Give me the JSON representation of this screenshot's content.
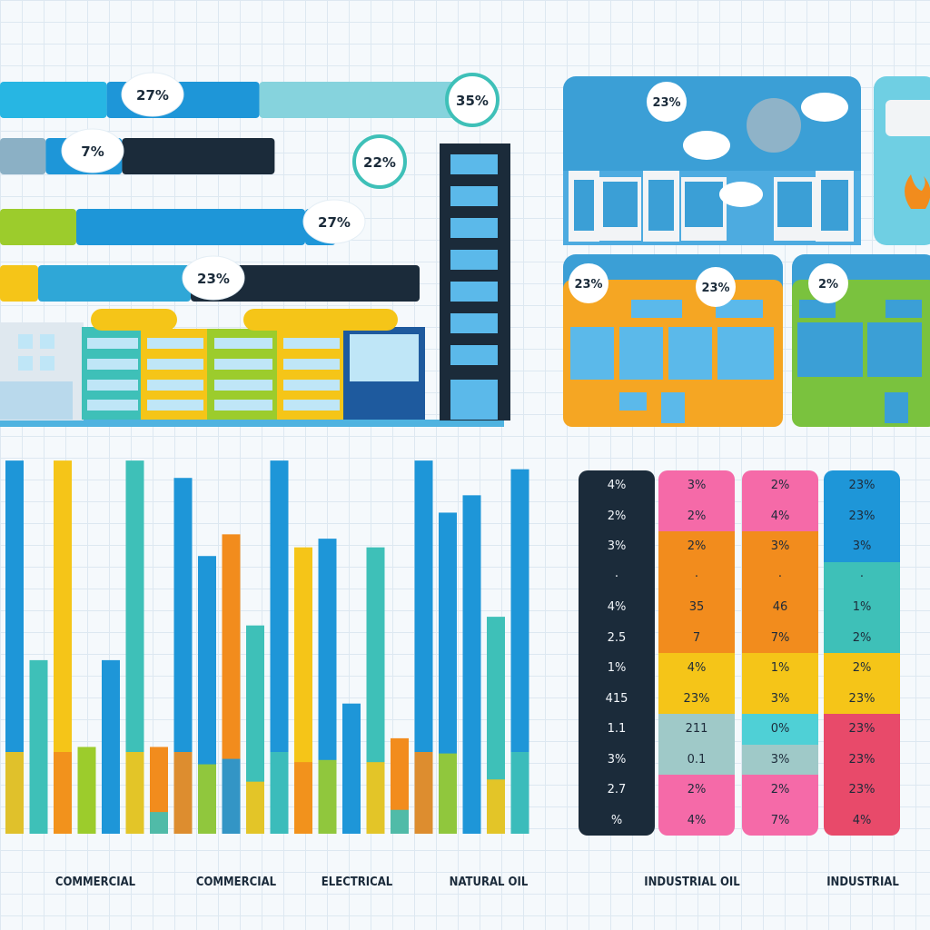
{
  "hbars": [
    {
      "label": "27%",
      "segments": [
        {
          "value": 28,
          "color": "#27b6e3"
        },
        {
          "value": 40,
          "color": "#1e96d8"
        },
        {
          "value": 55,
          "color": "#86d3dd"
        }
      ],
      "badge_alt": "35%"
    },
    {
      "label": "7%",
      "segments": [
        {
          "value": 12,
          "color": "#8bb0c5"
        },
        {
          "value": 20,
          "color": "#1e96d8"
        },
        {
          "value": 40,
          "color": "#1b2b3a"
        }
      ],
      "badge_alt": "22%"
    },
    {
      "label": "27%",
      "segments": [
        {
          "value": 20,
          "color": "#9ccc2c"
        },
        {
          "value": 60,
          "color": "#1e96d8"
        },
        {
          "value": 8,
          "color": "#1e96d8"
        }
      ]
    },
    {
      "label": "23%",
      "segments": [
        {
          "value": 10,
          "color": "#f5c518"
        },
        {
          "value": 40,
          "color": "#2fa7d7"
        },
        {
          "value": 60,
          "color": "#1b2b3a"
        }
      ]
    }
  ],
  "card_badges": [
    "23%",
    "23%",
    "23%",
    "2%"
  ],
  "chart_data": {
    "type": "bar",
    "series_colors": [
      "#1e96d8",
      "#f5c518",
      "#3ec0b8",
      "#f28c1d",
      "#9ccc2c"
    ],
    "bars": [
      {
        "values": [
          430
        ],
        "color": "#1e96d8"
      },
      {
        "values": [
          200
        ],
        "color": "#3ec0b8"
      },
      {
        "values": [
          430
        ],
        "color": "#f5c518"
      },
      {
        "values": [
          100
        ],
        "color": "#9ccc2c"
      },
      {
        "values": [
          200
        ],
        "color": "#1e96d8"
      },
      {
        "values": [
          430
        ],
        "color": "#3ec0b8"
      },
      {
        "values": [
          100
        ],
        "color": "#f28c1d"
      },
      {
        "values": [
          410
        ],
        "color": "#1e96d8"
      },
      {
        "values": [
          320
        ],
        "color": "#1e96d8"
      },
      {
        "values": [
          345
        ],
        "color": "#f28c1d"
      },
      {
        "values": [
          240
        ],
        "color": "#3ec0b8"
      },
      {
        "values": [
          430
        ],
        "color": "#1e96d8"
      },
      {
        "values": [
          330
        ],
        "color": "#f5c518"
      },
      {
        "values": [
          340
        ],
        "color": "#1e96d8"
      },
      {
        "values": [
          150
        ],
        "color": "#1e96d8"
      },
      {
        "values": [
          330
        ],
        "color": "#3ec0b8"
      },
      {
        "values": [
          110
        ],
        "color": "#f28c1d"
      },
      {
        "values": [
          430
        ],
        "color": "#1e96d8"
      },
      {
        "values": [
          370
        ],
        "color": "#1e96d8"
      },
      {
        "values": [
          390
        ],
        "color": "#1e96d8"
      },
      {
        "values": [
          250
        ],
        "color": "#3ec0b8"
      },
      {
        "values": [
          420
        ],
        "color": "#1e96d8"
      }
    ],
    "categories": [
      "COMMERCIAL",
      "COMMERCIAL",
      "ELECTRICAL",
      "NATURAL OIL",
      "INDUSTRIAL OIL",
      "INDUSTRIAL"
    ],
    "ylim": [
      0,
      450
    ]
  },
  "table_columns": [
    {
      "color": "#1b2b3a",
      "dark": true,
      "cells": [
        "4%",
        "2%",
        "3%",
        "·",
        "4%",
        "2.5",
        "1%",
        "415",
        "1.1",
        "3%",
        "2.7",
        "%"
      ]
    },
    {
      "colors": [
        "#f56aa8",
        "#f56aa8",
        "#f28c1d",
        "#f28c1d",
        "#f28c1d",
        "#f28c1d",
        "#f5c518",
        "#f5c518",
        "#9fc9c8",
        "#9fc9c8",
        "#f56aa8",
        "#f56aa8"
      ],
      "cells": [
        "3%",
        "2%",
        "2%",
        "·",
        "35",
        "7",
        "4%",
        "23%",
        "211",
        "0.1",
        "2%",
        "4%"
      ]
    },
    {
      "colors": [
        "#f56aa8",
        "#f56aa8",
        "#f28c1d",
        "#f28c1d",
        "#f28c1d",
        "#f28c1d",
        "#f5c518",
        "#f5c518",
        "#4fd0d6",
        "#9fc9c8",
        "#f56aa8",
        "#f56aa8"
      ],
      "cells": [
        "2%",
        "4%",
        "3%",
        "·",
        "46",
        "7%",
        "1%",
        "3%",
        "0%",
        "3%",
        "2%",
        "7%"
      ]
    },
    {
      "colors": [
        "#1e96d8",
        "#1e96d8",
        "#1e96d8",
        "#3ec0b8",
        "#3ec0b8",
        "#3ec0b8",
        "#f5c518",
        "#f5c518",
        "#e84a6a",
        "#e84a6a",
        "#e84a6a",
        "#e84a6a"
      ],
      "cells": [
        "23%",
        "23%",
        "3%",
        "·",
        "1%",
        "2%",
        "2%",
        "23%",
        "23%",
        "23%",
        "23%",
        "4%"
      ]
    }
  ]
}
